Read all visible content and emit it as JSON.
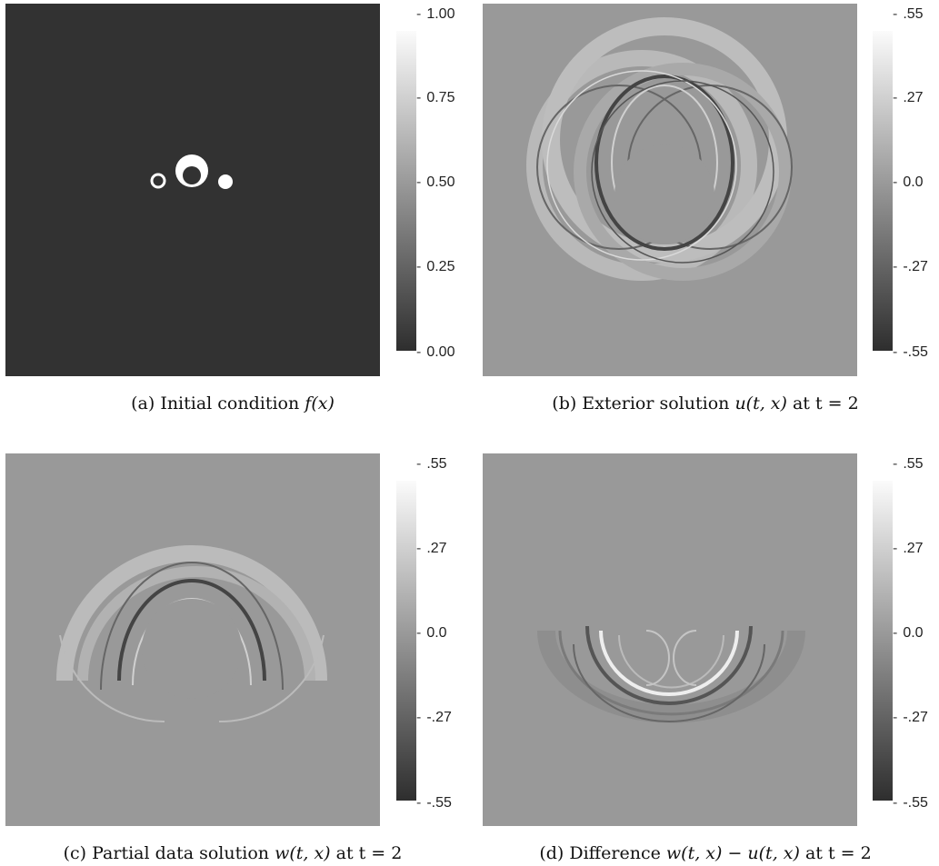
{
  "panels": [
    {
      "caption_pre": "(a) Initial condition ",
      "caption_math": "f(x)",
      "caption_post": "",
      "colorbar": [
        "1.00",
        "0.75",
        "0.50",
        "0.25",
        "0.00"
      ],
      "background": "#323232"
    },
    {
      "caption_pre": "(b) Exterior solution ",
      "caption_math": "u(t, x)",
      "caption_post": " at t = 2",
      "colorbar": [
        ".55",
        ".27",
        "0.0",
        "-.27",
        "-.55"
      ],
      "background": "#999999"
    },
    {
      "caption_pre": "(c) Partial data solution ",
      "caption_math": "w(t, x)",
      "caption_post": " at t = 2",
      "colorbar": [
        ".55",
        ".27",
        "0.0",
        "-.27",
        "-.55"
      ],
      "background": "#999999"
    },
    {
      "caption_pre": "(d) Difference ",
      "caption_math": "w(t, x) − u(t, x)",
      "caption_post": " at t = 2",
      "colorbar": [
        ".55",
        ".27",
        "0.0",
        "-.27",
        "-.55"
      ],
      "background": "#999999"
    }
  ]
}
